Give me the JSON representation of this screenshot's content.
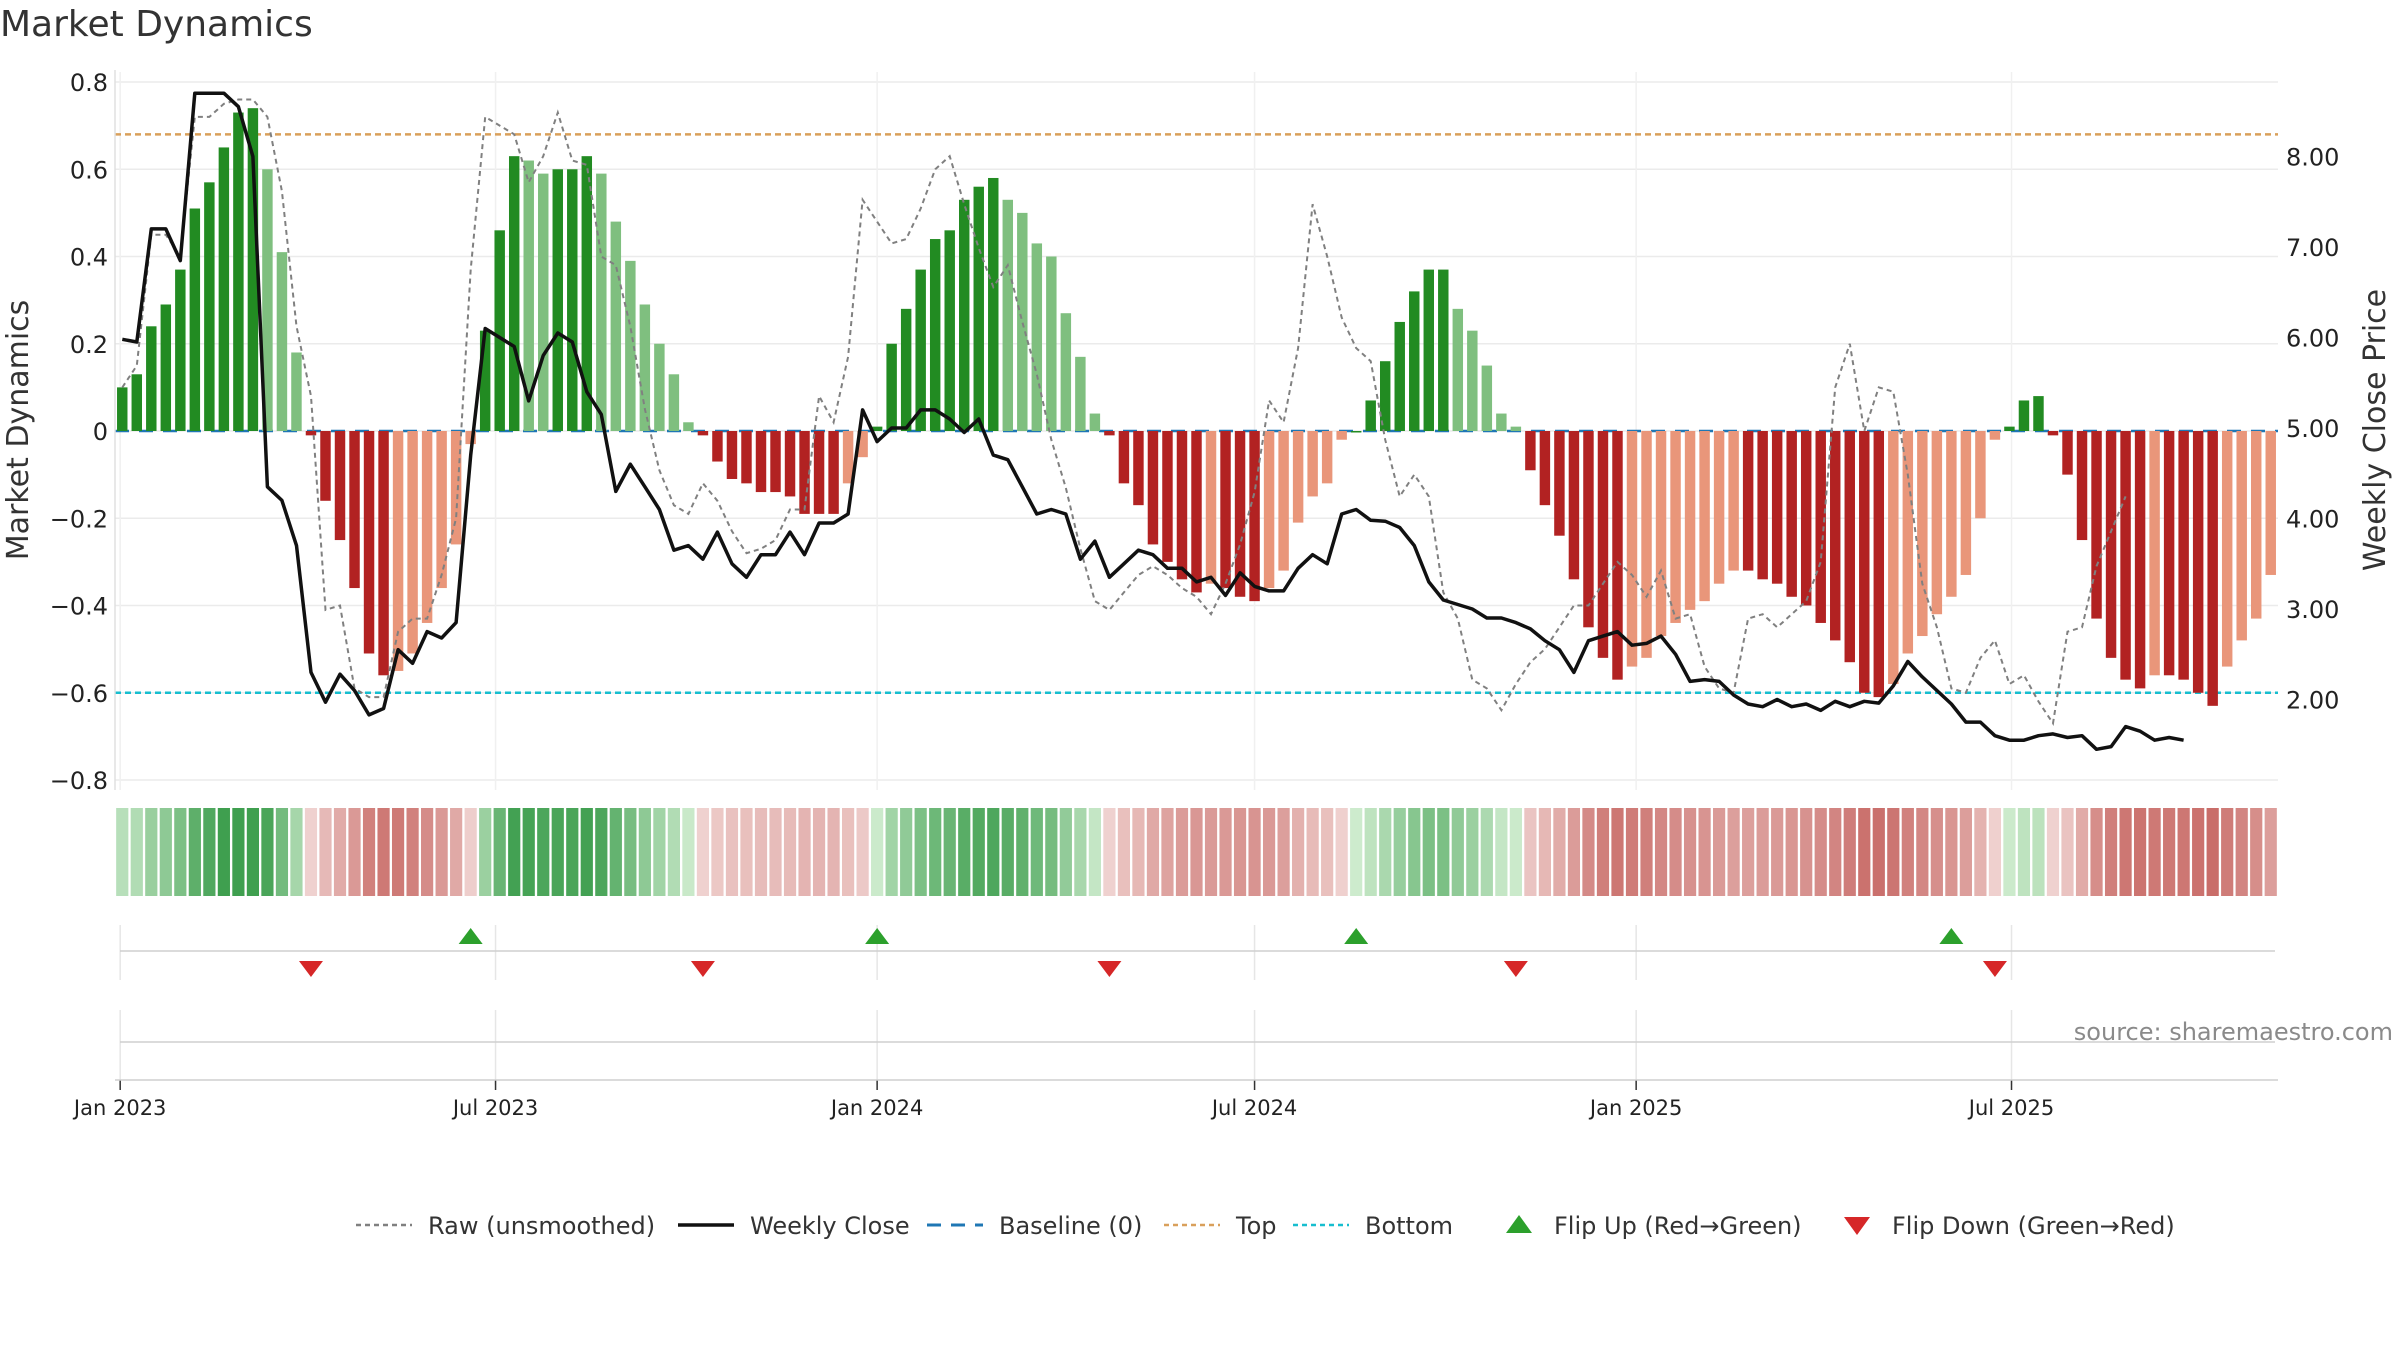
{
  "title": "Market Dynamics",
  "source": "source: sharemaestro.com",
  "chart_data": {
    "type": "bar",
    "ylabel_left": "Market Dynamics",
    "ylabel_right": "Weekly Close Price",
    "ylim_left": [
      -0.8,
      0.8
    ],
    "ylim_right": [
      1.0,
      8.5
    ],
    "yticks_left": [
      "0.8",
      "0.6",
      "0.4",
      "0.2",
      "0",
      "−0.2",
      "−0.4",
      "−0.6",
      "−0.8"
    ],
    "yticks_right": [
      "8.00",
      "7.00",
      "6.00",
      "5.00",
      "4.00",
      "3.00",
      "2.00"
    ],
    "x_start": "2023-01-02",
    "x_step_days": 7,
    "x_ticks": [
      {
        "label": "Jan 2023",
        "date": "2023-01-01"
      },
      {
        "label": "Jul 2023",
        "date": "2023-07-01"
      },
      {
        "label": "Jan 2024",
        "date": "2024-01-01"
      },
      {
        "label": "Jul 2024",
        "date": "2024-07-01"
      },
      {
        "label": "Jan 2025",
        "date": "2025-01-01"
      },
      {
        "label": "Jul 2025",
        "date": "2025-07-01"
      }
    ],
    "top_level": 0.68,
    "bottom_level": -0.6,
    "baseline": 0,
    "grid": true,
    "legend_position": "bottom",
    "colors": {
      "green_strong": "#228b22",
      "green_light": "#7fbf7f",
      "red_strong": "#b22222",
      "red_light": "#e9967a",
      "raw": "#808080",
      "close": "#111111",
      "baseline": "#1f77b4",
      "top": "#d9a05b",
      "bottom": "#17becf",
      "flip_up": "#2ca02c",
      "flip_down": "#d62728"
    },
    "series": [
      {
        "name": "Market Dynamics",
        "values": [
          0.1,
          0.13,
          0.24,
          0.29,
          0.37,
          0.51,
          0.57,
          0.65,
          0.73,
          0.74,
          0.6,
          0.41,
          0.18,
          -0.01,
          -0.16,
          -0.25,
          -0.36,
          -0.51,
          -0.56,
          -0.55,
          -0.51,
          -0.44,
          -0.36,
          -0.26,
          -0.03,
          0.23,
          0.46,
          0.63,
          0.62,
          0.59,
          0.6,
          0.6,
          0.63,
          0.59,
          0.48,
          0.39,
          0.29,
          0.2,
          0.13,
          0.02,
          -0.01,
          -0.07,
          -0.11,
          -0.12,
          -0.14,
          -0.14,
          -0.15,
          -0.19,
          -0.19,
          -0.19,
          -0.12,
          -0.06,
          0.01,
          0.2,
          0.28,
          0.37,
          0.44,
          0.46,
          0.53,
          0.56,
          0.58,
          0.53,
          0.5,
          0.43,
          0.4,
          0.27,
          0.17,
          0.04,
          -0.01,
          -0.12,
          -0.17,
          -0.26,
          -0.3,
          -0.34,
          -0.37,
          -0.35,
          -0.36,
          -0.38,
          -0.39,
          -0.36,
          -0.32,
          -0.21,
          -0.15,
          -0.12,
          -0.02,
          0,
          0.07,
          0.16,
          0.25,
          0.32,
          0.37,
          0.37,
          0.28,
          0.23,
          0.15,
          0.04,
          0.01,
          -0.09,
          -0.17,
          -0.24,
          -0.34,
          -0.45,
          -0.52,
          -0.57,
          -0.54,
          -0.52,
          -0.47,
          -0.44,
          -0.41,
          -0.39,
          -0.35,
          -0.32,
          -0.32,
          -0.34,
          -0.35,
          -0.38,
          -0.4,
          -0.44,
          -0.48,
          -0.53,
          -0.6,
          -0.61,
          -0.58,
          -0.51,
          -0.47,
          -0.42,
          -0.38,
          -0.33,
          -0.2,
          -0.02,
          0.01,
          0.07,
          0.08,
          -0.01,
          -0.1,
          -0.25,
          -0.43,
          -0.52,
          -0.57,
          -0.59,
          -0.56,
          -0.56,
          -0.57,
          -0.6,
          -0.63,
          -0.54,
          -0.48,
          -0.43,
          -0.33
        ]
      },
      {
        "name": "Raw (unsmoothed)",
        "values": [
          0.1,
          0.15,
          0.45,
          0.45,
          0.4,
          0.72,
          0.72,
          0.75,
          0.76,
          0.76,
          0.72,
          0.55,
          0.24,
          0.08,
          -0.41,
          -0.4,
          -0.59,
          -0.61,
          -0.61,
          -0.46,
          -0.43,
          -0.43,
          -0.33,
          -0.2,
          0.37,
          0.72,
          0.7,
          0.68,
          0.57,
          0.63,
          0.73,
          0.62,
          0.61,
          0.4,
          0.38,
          0.24,
          0.05,
          -0.09,
          -0.17,
          -0.19,
          -0.12,
          -0.16,
          -0.23,
          -0.28,
          -0.27,
          -0.25,
          -0.18,
          -0.18,
          0.08,
          0.02,
          0.17,
          0.53,
          0.48,
          0.43,
          0.44,
          0.51,
          0.6,
          0.63,
          0.52,
          0.42,
          0.33,
          0.38,
          0.25,
          0.13,
          -0.02,
          -0.13,
          -0.27,
          -0.39,
          -0.41,
          -0.37,
          -0.33,
          -0.31,
          -0.33,
          -0.36,
          -0.38,
          -0.42,
          -0.35,
          -0.26,
          -0.14,
          0.07,
          0.02,
          0.19,
          0.52,
          0.4,
          0.26,
          0.19,
          0.16,
          -0.02,
          -0.15,
          -0.1,
          -0.15,
          -0.37,
          -0.43,
          -0.57,
          -0.59,
          -0.64,
          -0.58,
          -0.53,
          -0.5,
          -0.45,
          -0.4,
          -0.4,
          -0.35,
          -0.3,
          -0.33,
          -0.38,
          -0.32,
          -0.43,
          -0.42,
          -0.54,
          -0.59,
          -0.6,
          -0.43,
          -0.42,
          -0.45,
          -0.42,
          -0.39,
          -0.3,
          0.1,
          0.2,
          0.0,
          0.1,
          0.09,
          -0.1,
          -0.35,
          -0.45,
          -0.59,
          -0.6,
          -0.52,
          -0.48,
          -0.58,
          -0.56,
          -0.62,
          -0.67,
          -0.46,
          -0.45,
          -0.31,
          -0.23,
          -0.15
        ]
      },
      {
        "name": "Weekly Close",
        "values": [
          5.98,
          5.95,
          7.2,
          7.2,
          6.85,
          8.7,
          8.7,
          8.7,
          8.55,
          8.0,
          4.35,
          4.2,
          3.7,
          2.3,
          1.97,
          2.28,
          2.1,
          1.83,
          1.9,
          2.55,
          2.4,
          2.75,
          2.68,
          2.85,
          4.7,
          6.1,
          6.0,
          5.9,
          5.3,
          5.8,
          6.05,
          5.95,
          5.4,
          5.15,
          4.3,
          4.6,
          4.35,
          4.1,
          3.65,
          3.7,
          3.55,
          3.85,
          3.5,
          3.35,
          3.6,
          3.6,
          3.85,
          3.6,
          3.95,
          3.95,
          4.05,
          5.2,
          4.85,
          5.0,
          5.0,
          5.2,
          5.2,
          5.1,
          4.95,
          5.1,
          4.7,
          4.65,
          4.35,
          4.05,
          4.1,
          4.05,
          3.55,
          3.75,
          3.35,
          3.5,
          3.65,
          3.6,
          3.45,
          3.45,
          3.3,
          3.35,
          3.15,
          3.4,
          3.25,
          3.2,
          3.2,
          3.45,
          3.6,
          3.5,
          4.05,
          4.1,
          3.98,
          3.97,
          3.9,
          3.7,
          3.3,
          3.1,
          3.05,
          3.0,
          2.9,
          2.9,
          2.85,
          2.78,
          2.65,
          2.55,
          2.3,
          2.65,
          2.7,
          2.75,
          2.6,
          2.62,
          2.7,
          2.5,
          2.2,
          2.22,
          2.2,
          2.05,
          1.95,
          1.92,
          2.0,
          1.92,
          1.95,
          1.88,
          1.98,
          1.92,
          1.98,
          1.96,
          2.15,
          2.42,
          2.25,
          2.1,
          1.95,
          1.75,
          1.75,
          1.6,
          1.55,
          1.55,
          1.6,
          1.62,
          1.58,
          1.6,
          1.45,
          1.48,
          1.7,
          1.65,
          1.55,
          1.58,
          1.55
        ]
      }
    ],
    "regime_strip": {
      "description_free": true
    },
    "flip_up_weeks": [
      24,
      52,
      85,
      126
    ],
    "flip_down_weeks": [
      13,
      40,
      68,
      96,
      129
    ],
    "legend": [
      {
        "label": "Raw (unsmoothed)",
        "kind": "dashed-line",
        "color": "#808080"
      },
      {
        "label": "Weekly Close",
        "kind": "line",
        "color": "#111111"
      },
      {
        "label": "Baseline (0)",
        "kind": "dashed-line-wide",
        "color": "#1f77b4"
      },
      {
        "label": "Top",
        "kind": "dashed-line",
        "color": "#d9a05b"
      },
      {
        "label": "Bottom",
        "kind": "dashed-line",
        "color": "#17becf"
      },
      {
        "label": "Flip Up (Red→Green)",
        "kind": "triangle-up",
        "color": "#2ca02c"
      },
      {
        "label": "Flip Down (Green→Red)",
        "kind": "triangle-down",
        "color": "#d62728"
      }
    ]
  }
}
